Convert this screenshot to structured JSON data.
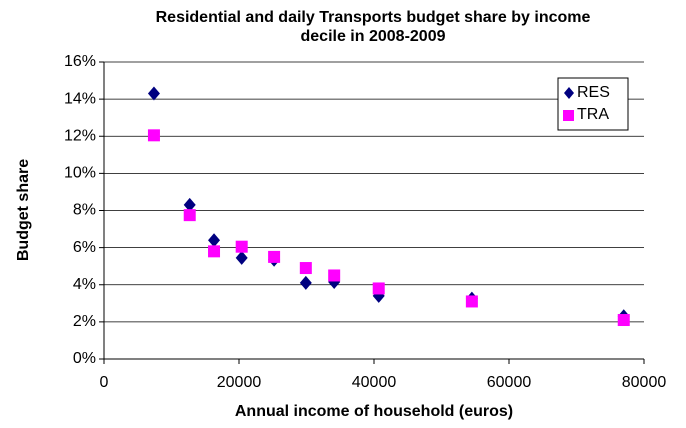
{
  "chart_data": {
    "type": "scatter",
    "title": "Residential and daily Transports budget share by income decile in 2008-2009",
    "xlabel": "Annual income of household (euros)",
    "ylabel": "Budget share",
    "xlim": [
      0,
      80000
    ],
    "xticks": [
      0,
      20000,
      40000,
      60000,
      80000
    ],
    "ylim": [
      0,
      16
    ],
    "yticks": [
      {
        "value": 0,
        "label": "0%"
      },
      {
        "value": 2,
        "label": "2%"
      },
      {
        "value": 4,
        "label": "4%"
      },
      {
        "value": 6,
        "label": "6%"
      },
      {
        "value": 8,
        "label": "8%"
      },
      {
        "value": 10,
        "label": "10%"
      },
      {
        "value": 12,
        "label": "12%"
      },
      {
        "value": 14,
        "label": "14%"
      },
      {
        "value": 16,
        "label": "16%"
      }
    ],
    "grid": true,
    "legend": "upper right",
    "series": [
      {
        "name": "RES",
        "color": "#000080",
        "marker": "diamond",
        "x": [
          7400,
          12700,
          16300,
          20400,
          25200,
          29900,
          34100,
          40700,
          54500,
          77000
        ],
        "values": [
          14.3,
          8.3,
          6.4,
          5.45,
          5.35,
          4.1,
          4.15,
          3.4,
          3.25,
          2.3
        ]
      },
      {
        "name": "TRA",
        "color": "#ff00ff",
        "marker": "square",
        "x": [
          7400,
          12700,
          16300,
          20400,
          25200,
          29900,
          34100,
          40700,
          54500,
          77000
        ],
        "values": [
          12.05,
          7.75,
          5.8,
          6.05,
          5.5,
          4.9,
          4.5,
          3.8,
          3.1,
          2.1
        ]
      }
    ]
  }
}
